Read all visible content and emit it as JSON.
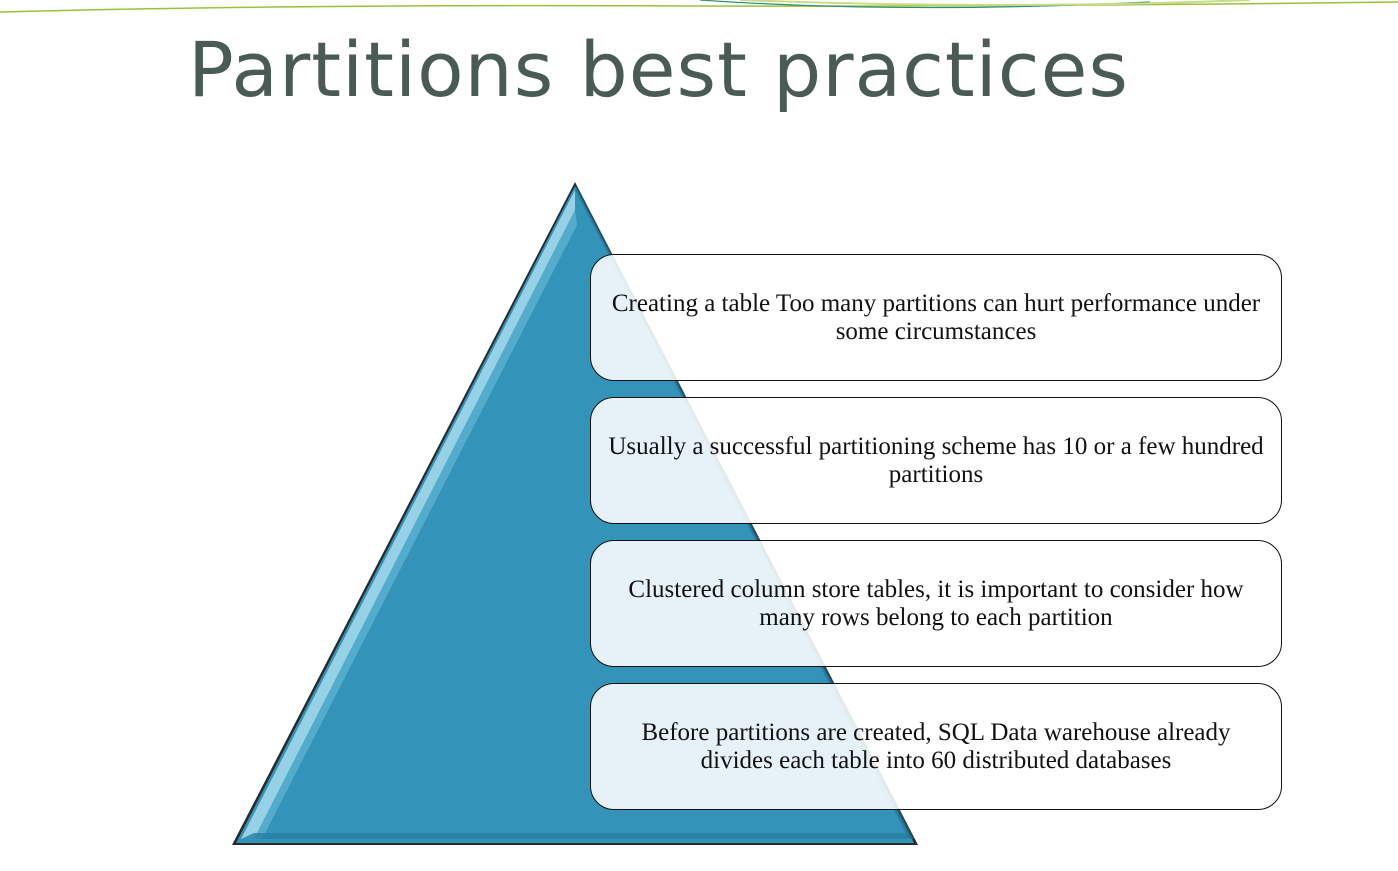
{
  "slide": {
    "title": "Partitions best practices"
  },
  "colors": {
    "title": "#4a5b55",
    "pyramid_fill": "#3393b9",
    "pyramid_highlight": "#a9dced",
    "box_border": "#111111",
    "accent_green": "#9bc13a"
  },
  "pyramid": {
    "items": [
      {
        "text": "Creating a table Too many partitions can hurt performance under some circumstances"
      },
      {
        "text": "Usually a successful partitioning scheme has 10 or a few hundred partitions"
      },
      {
        "text": "Clustered column store tables, it is important to consider how many rows belong to each partition"
      },
      {
        "text": "Before partitions are created, SQL Data warehouse already divides each table into 60 distributed databases"
      }
    ]
  }
}
